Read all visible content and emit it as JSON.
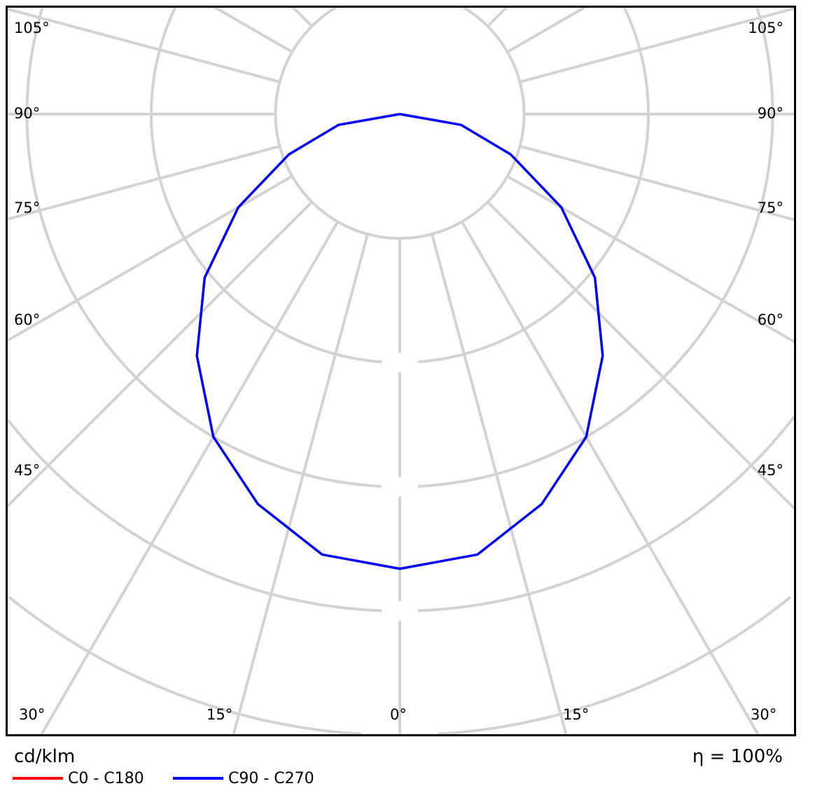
{
  "chart_data": {
    "type": "polar-line",
    "unit_label": "cd/klm",
    "efficiency_label": "η = 100%",
    "angle_labels_left": [
      "105°",
      "90°",
      "75°",
      "60°",
      "45°"
    ],
    "angle_labels_right": [
      "105°",
      "90°",
      "75°",
      "60°",
      "45°"
    ],
    "angle_labels_bottom": [
      "30°",
      "15°",
      "0°",
      "15°",
      "30°"
    ],
    "radial_ring_step": 100,
    "grid": true,
    "legend_placement": "bottom-left",
    "angles": [
      0,
      10,
      20,
      30,
      40,
      50,
      60,
      70,
      80,
      90
    ],
    "series": [
      {
        "name": "C0 - C180",
        "color": "#ff0000",
        "values": [
          366,
          360,
          334,
          300,
          254,
          205,
          150,
          95,
          50,
          0
        ]
      },
      {
        "name": "C90 - C270",
        "color": "#0000ff",
        "values": [
          366,
          360,
          334,
          300,
          254,
          205,
          150,
          95,
          50,
          0
        ]
      }
    ]
  }
}
